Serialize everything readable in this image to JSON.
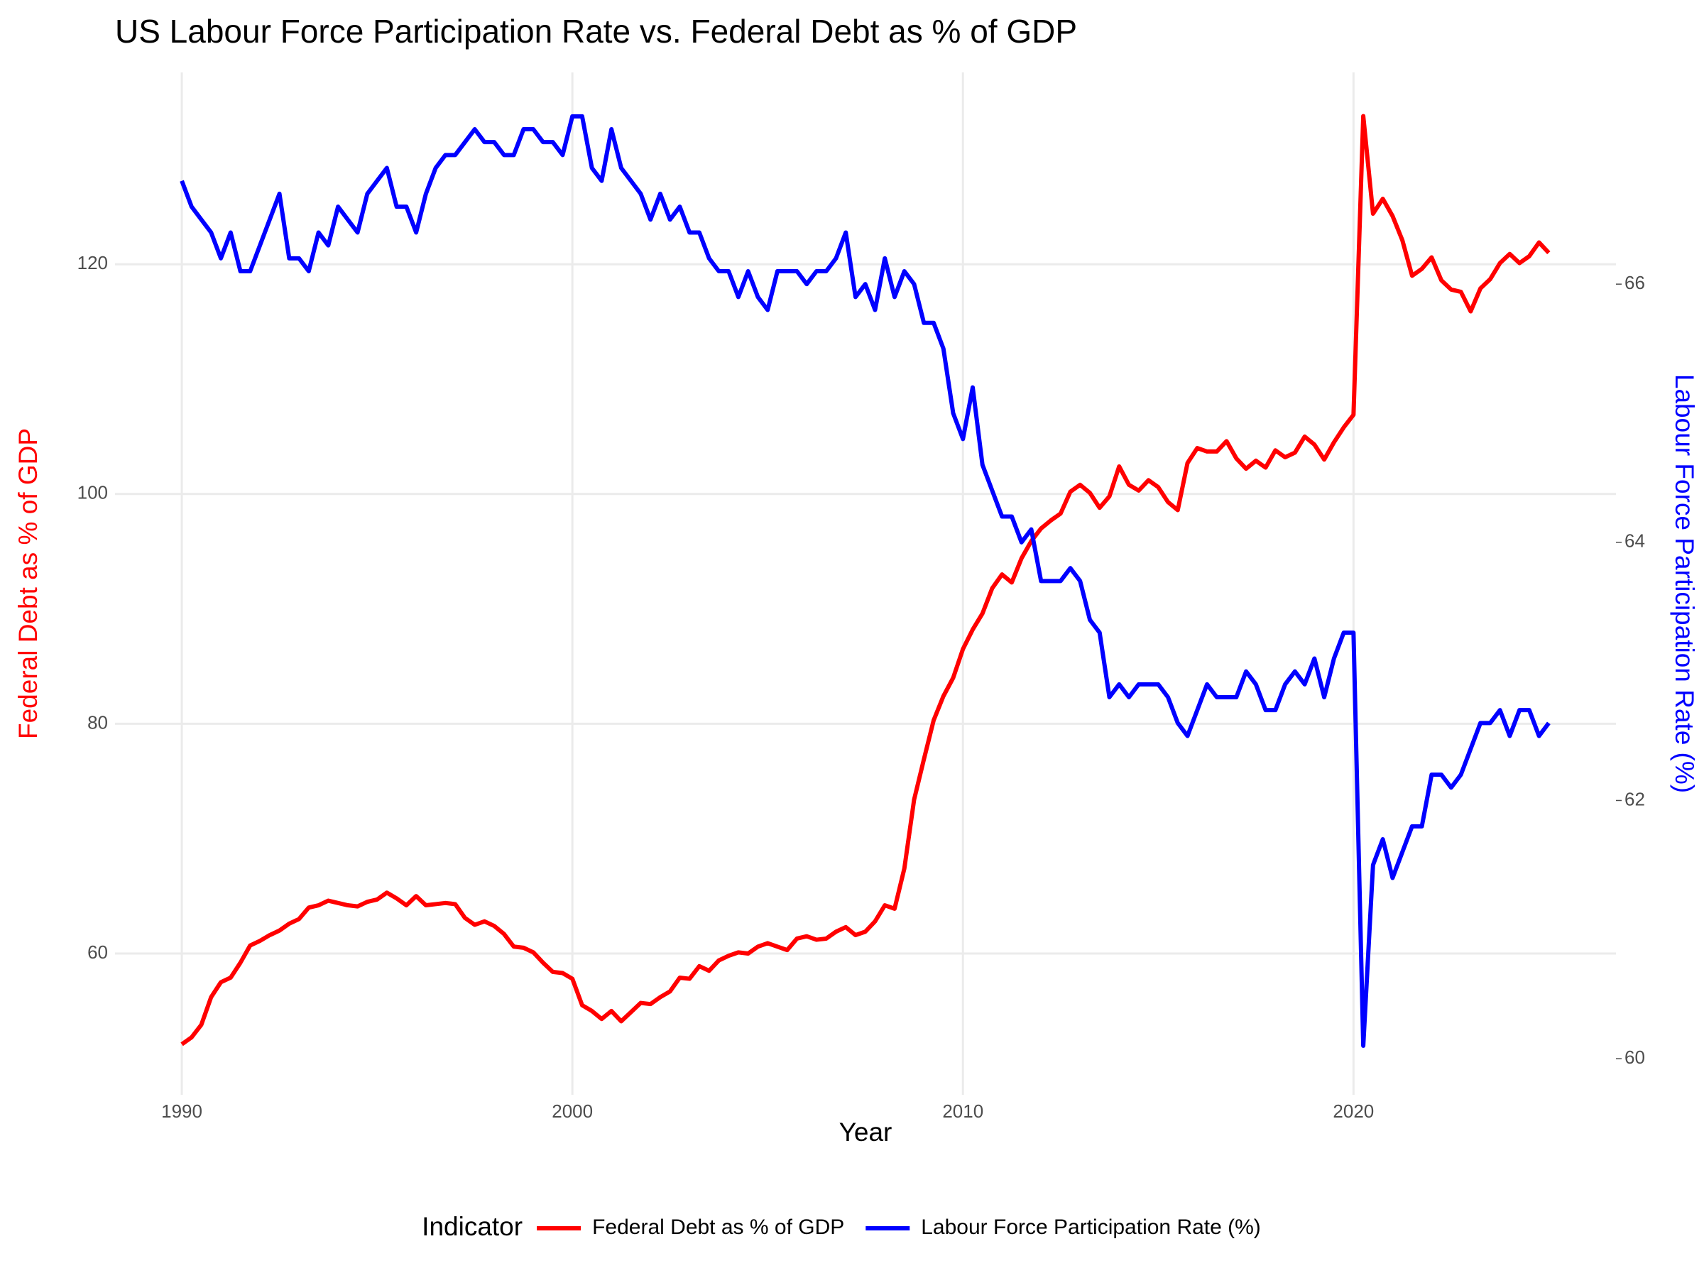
{
  "chart_data": {
    "type": "line",
    "title": "US Labour Force Participation Rate vs. Federal Debt as % of GDP",
    "x_label": "Year",
    "y_label": "Federal Debt as % of GDP",
    "y2_label": "Labour Force Participation Rate (%)",
    "legend_title": "Indicator",
    "legend_position": "bottom",
    "grid": true,
    "xlim": [
      1988.29,
      2026.72
    ],
    "xticks": [
      1990,
      2000,
      2010,
      2020
    ],
    "ylim": [
      47.7,
      136.7
    ],
    "yticks": [
      60,
      80,
      100,
      120
    ],
    "y2lim": [
      59.72,
      67.64
    ],
    "y2ticks": [
      60,
      62,
      64,
      66
    ],
    "x": [
      1990,
      1990.25,
      1990.5,
      1990.75,
      1991,
      1991.25,
      1991.5,
      1991.75,
      1992,
      1992.25,
      1992.5,
      1992.75,
      1993,
      1993.25,
      1993.5,
      1993.75,
      1994,
      1994.25,
      1994.5,
      1994.75,
      1995,
      1995.25,
      1995.5,
      1995.75,
      1996,
      1996.25,
      1996.5,
      1996.75,
      1997,
      1997.25,
      1997.5,
      1997.75,
      1998,
      1998.25,
      1998.5,
      1998.75,
      1999,
      1999.25,
      1999.5,
      1999.75,
      2000,
      2000.25,
      2000.5,
      2000.75,
      2001,
      2001.25,
      2001.5,
      2001.75,
      2002,
      2002.25,
      2002.5,
      2002.75,
      2003,
      2003.25,
      2003.5,
      2003.75,
      2004,
      2004.25,
      2004.5,
      2004.75,
      2005,
      2005.25,
      2005.5,
      2005.75,
      2006,
      2006.25,
      2006.5,
      2006.75,
      2007,
      2007.25,
      2007.5,
      2007.75,
      2008,
      2008.25,
      2008.5,
      2008.75,
      2009,
      2009.25,
      2009.5,
      2009.75,
      2010,
      2010.25,
      2010.5,
      2010.75,
      2011,
      2011.25,
      2011.5,
      2011.75,
      2012,
      2012.25,
      2012.5,
      2012.75,
      2013,
      2013.25,
      2013.5,
      2013.75,
      2014,
      2014.25,
      2014.5,
      2014.75,
      2015,
      2015.25,
      2015.5,
      2015.75,
      2016,
      2016.25,
      2016.5,
      2016.75,
      2017,
      2017.25,
      2017.5,
      2017.75,
      2018,
      2018.25,
      2018.5,
      2018.75,
      2019,
      2019.25,
      2019.5,
      2019.75,
      2020,
      2020.25,
      2020.5,
      2020.75,
      2021,
      2021.25,
      2021.5,
      2021.75,
      2022,
      2022.25,
      2022.5,
      2022.75,
      2023,
      2023.25,
      2023.5,
      2023.75,
      2024,
      2024.25,
      2024.5,
      2024.75,
      2025
    ],
    "series": [
      {
        "name": "Federal Debt as % of GDP",
        "color": "#ff0000",
        "values": [
          52.1,
          52.7,
          53.8,
          56.2,
          57.5,
          57.9,
          59.2,
          60.7,
          61.1,
          61.6,
          62.0,
          62.6,
          63.0,
          64.0,
          64.2,
          64.6,
          64.4,
          64.2,
          64.1,
          64.5,
          64.7,
          65.3,
          64.8,
          64.2,
          65.0,
          64.2,
          64.3,
          64.4,
          64.3,
          63.1,
          62.5,
          62.8,
          62.4,
          61.7,
          60.6,
          60.5,
          60.1,
          59.2,
          58.4,
          58.3,
          57.8,
          55.5,
          55.0,
          54.3,
          55.0,
          54.1,
          54.9,
          55.7,
          55.6,
          56.2,
          56.7,
          57.9,
          57.8,
          58.9,
          58.5,
          59.4,
          59.8,
          60.1,
          60.0,
          60.6,
          60.9,
          60.6,
          60.3,
          61.3,
          61.5,
          61.2,
          61.3,
          61.9,
          62.3,
          61.6,
          61.9,
          62.8,
          64.2,
          63.9,
          67.4,
          73.4,
          76.9,
          80.3,
          82.4,
          84.0,
          86.5,
          88.2,
          89.6,
          91.8,
          93.0,
          92.3,
          94.4,
          95.9,
          97.0,
          97.7,
          98.3,
          100.2,
          100.8,
          100.1,
          98.8,
          99.8,
          102.4,
          100.8,
          100.3,
          101.2,
          100.6,
          99.3,
          98.6,
          102.7,
          104.0,
          103.7,
          103.7,
          104.6,
          103.1,
          102.2,
          102.9,
          102.3,
          103.8,
          103.2,
          103.6,
          105.0,
          104.3,
          103.0,
          104.5,
          105.8,
          106.9,
          132.9,
          124.4,
          125.7,
          124.2,
          122.1,
          119.0,
          119.6,
          120.6,
          118.6,
          117.8,
          117.6,
          115.9,
          117.9,
          118.7,
          120.1,
          120.9,
          120.1,
          120.7,
          121.9,
          121.0
        ]
      },
      {
        "name": "Labour Force Participation Rate (%)",
        "color": "#0000ff",
        "axis": "y2",
        "values": [
          66.8,
          66.6,
          66.5,
          66.4,
          66.2,
          66.4,
          66.1,
          66.1,
          66.3,
          66.5,
          66.7,
          66.2,
          66.2,
          66.1,
          66.4,
          66.3,
          66.6,
          66.5,
          66.4,
          66.7,
          66.8,
          66.9,
          66.6,
          66.6,
          66.4,
          66.7,
          66.9,
          67.0,
          67.0,
          67.1,
          67.2,
          67.1,
          67.1,
          67.0,
          67.0,
          67.2,
          67.2,
          67.1,
          67.1,
          67.0,
          67.3,
          67.3,
          66.9,
          66.8,
          67.2,
          66.9,
          66.8,
          66.7,
          66.5,
          66.7,
          66.5,
          66.6,
          66.4,
          66.4,
          66.2,
          66.1,
          66.1,
          65.9,
          66.1,
          65.9,
          65.8,
          66.1,
          66.1,
          66.1,
          66.0,
          66.1,
          66.1,
          66.2,
          66.4,
          65.9,
          66.0,
          65.8,
          66.2,
          65.9,
          66.1,
          66.0,
          65.7,
          65.7,
          65.5,
          65.0,
          64.8,
          65.2,
          64.6,
          64.4,
          64.2,
          64.2,
          64.0,
          64.1,
          63.7,
          63.7,
          63.7,
          63.8,
          63.7,
          63.4,
          63.3,
          62.8,
          62.9,
          62.8,
          62.9,
          62.9,
          62.9,
          62.8,
          62.6,
          62.5,
          62.7,
          62.9,
          62.8,
          62.8,
          62.8,
          63.0,
          62.9,
          62.7,
          62.7,
          62.9,
          63.0,
          62.9,
          63.1,
          62.8,
          63.1,
          63.3,
          63.3,
          60.1,
          61.5,
          61.7,
          61.4,
          61.6,
          61.8,
          61.8,
          62.2,
          62.2,
          62.1,
          62.2,
          62.4,
          62.6,
          62.6,
          62.7,
          62.5,
          62.7,
          62.7,
          62.5,
          62.6
        ]
      }
    ]
  }
}
